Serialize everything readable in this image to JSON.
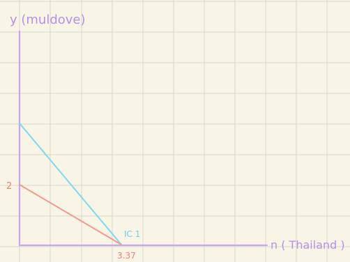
{
  "axes": {
    "y_label": "y (muldove)",
    "x_label": "n ( Thailand )",
    "y_intercept_red_label": "2",
    "x_intercept_label": "3.37",
    "curve_label": "IC 1"
  },
  "colors": {
    "background": "#f8f4e6",
    "grid": "#d8d6cc",
    "axis": "#c7a6ec",
    "axis_label": "#b592e6",
    "red_line": "#f29a8e",
    "red_label": "#ee7f72",
    "blue_line": "#7fd8ef",
    "blue_label": "#6fcfe8"
  }
}
